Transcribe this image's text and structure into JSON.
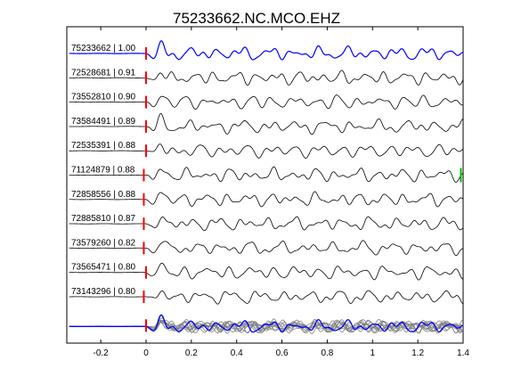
{
  "chart_data": {
    "type": "line",
    "title": "75233662.NC.MCO.EHZ",
    "xlabel": "",
    "ylabel": "",
    "xlim": [
      -0.35,
      1.4
    ],
    "xticks": [
      -0.2,
      0,
      0.2,
      0.4,
      0.6,
      0.8,
      1.0,
      1.2,
      1.4
    ],
    "xtick_labels": [
      "-0.2",
      "0",
      "0.2",
      "0.4",
      "0.6",
      "0.8",
      "1",
      "1.2",
      "1.4"
    ],
    "grid": false,
    "legend": "none",
    "colors": {
      "reference": "#0000ff",
      "trace": "#000000",
      "pick": "#ff0000",
      "secondary_pick": "#00bb00",
      "overlay": "#808080"
    },
    "series": [
      {
        "label": "75233662 | 1.00",
        "id": "75233662",
        "cc": 1.0,
        "pick_time": 0.0,
        "color": "#0000ff"
      },
      {
        "label": "72528681 | 0.91",
        "id": "72528681",
        "cc": 0.91,
        "pick_time": 0.0,
        "color": "#000000"
      },
      {
        "label": "73552810 | 0.90",
        "id": "73552810",
        "cc": 0.9,
        "pick_time": 0.0,
        "color": "#000000"
      },
      {
        "label": "73584491 | 0.89",
        "id": "73584491",
        "cc": 0.89,
        "pick_time": 0.0,
        "color": "#000000"
      },
      {
        "label": "72535391 | 0.88",
        "id": "72535391",
        "cc": 0.88,
        "pick_time": 0.0,
        "color": "#000000"
      },
      {
        "label": "71124879 | 0.88",
        "id": "71124879",
        "cc": 0.88,
        "pick_time": -0.01,
        "secondary_pick_time": 1.39,
        "color": "#000000"
      },
      {
        "label": "72858556 | 0.88",
        "id": "72858556",
        "cc": 0.88,
        "pick_time": -0.01,
        "color": "#000000"
      },
      {
        "label": "72885810 | 0.87",
        "id": "72885810",
        "cc": 0.87,
        "pick_time": -0.01,
        "color": "#000000"
      },
      {
        "label": "73579260 | 0.82",
        "id": "73579260",
        "cc": 0.82,
        "pick_time": -0.01,
        "color": "#000000"
      },
      {
        "label": "73565471 | 0.80",
        "id": "73565471",
        "cc": 0.8,
        "pick_time": 0.0,
        "color": "#000000"
      },
      {
        "label": "73143296 | 0.80",
        "id": "73143296",
        "cc": 0.8,
        "pick_time": -0.01,
        "color": "#000000"
      }
    ],
    "stack": {
      "pick_time": 0.0,
      "description_colors": [
        "#808080",
        "#0000ff"
      ]
    }
  }
}
